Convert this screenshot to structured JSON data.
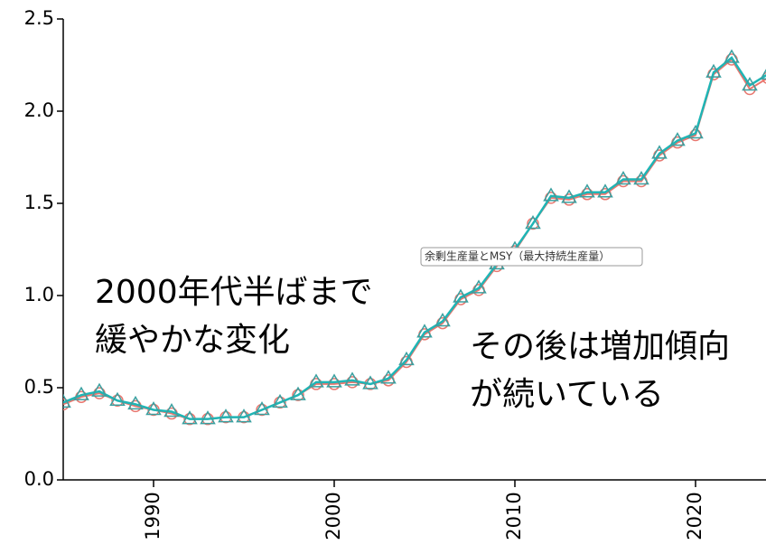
{
  "chart_data": {
    "type": "line",
    "x": [
      1985,
      1986,
      1987,
      1988,
      1989,
      1990,
      1991,
      1992,
      1993,
      1994,
      1995,
      1996,
      1997,
      1998,
      1999,
      2000,
      2001,
      2002,
      2003,
      2004,
      2005,
      2006,
      2007,
      2008,
      2009,
      2010,
      2011,
      2012,
      2013,
      2014,
      2015,
      2016,
      2017,
      2018,
      2019,
      2020,
      2021,
      2022,
      2023,
      2024
    ],
    "series": [
      {
        "color": "#e8776f",
        "marker": "circle",
        "values": [
          0.41,
          0.45,
          0.47,
          0.43,
          0.4,
          0.38,
          0.36,
          0.33,
          0.33,
          0.34,
          0.34,
          0.38,
          0.42,
          0.46,
          0.52,
          0.52,
          0.53,
          0.52,
          0.54,
          0.64,
          0.79,
          0.85,
          0.98,
          1.03,
          1.16,
          1.24,
          1.39,
          1.53,
          1.52,
          1.55,
          1.55,
          1.62,
          1.62,
          1.76,
          1.83,
          1.87,
          2.2,
          2.28,
          2.12,
          2.18
        ]
      },
      {
        "color": "#1fb5b5",
        "marker": "triangle",
        "values": [
          0.42,
          0.46,
          0.48,
          0.43,
          0.41,
          0.38,
          0.37,
          0.33,
          0.33,
          0.34,
          0.34,
          0.38,
          0.42,
          0.46,
          0.53,
          0.53,
          0.54,
          0.52,
          0.55,
          0.65,
          0.8,
          0.86,
          0.99,
          1.04,
          1.17,
          1.25,
          1.39,
          1.54,
          1.53,
          1.56,
          1.56,
          1.63,
          1.63,
          1.77,
          1.84,
          1.88,
          2.21,
          2.29,
          2.14,
          2.2
        ]
      }
    ],
    "xlim": [
      1985,
      2023.9
    ],
    "xticks": [
      1990,
      2000,
      2010,
      2020
    ],
    "ylim": [
      0,
      2.5
    ],
    "yticks": [
      {
        "value": 0,
        "label": "0.0"
      },
      0.5,
      {
        "value": 1,
        "label": "1.0"
      },
      1.5,
      {
        "value": 2,
        "label": "2.0"
      },
      2.5
    ],
    "annotations": [
      {
        "lines": [
          "2000年代半ばまで",
          "緩やかな変化"
        ]
      },
      {
        "lines": [
          "その後は増加傾向",
          "が続いている"
        ]
      }
    ],
    "tooltip": "余剰生産量とMSY（最大持続生産量）"
  }
}
